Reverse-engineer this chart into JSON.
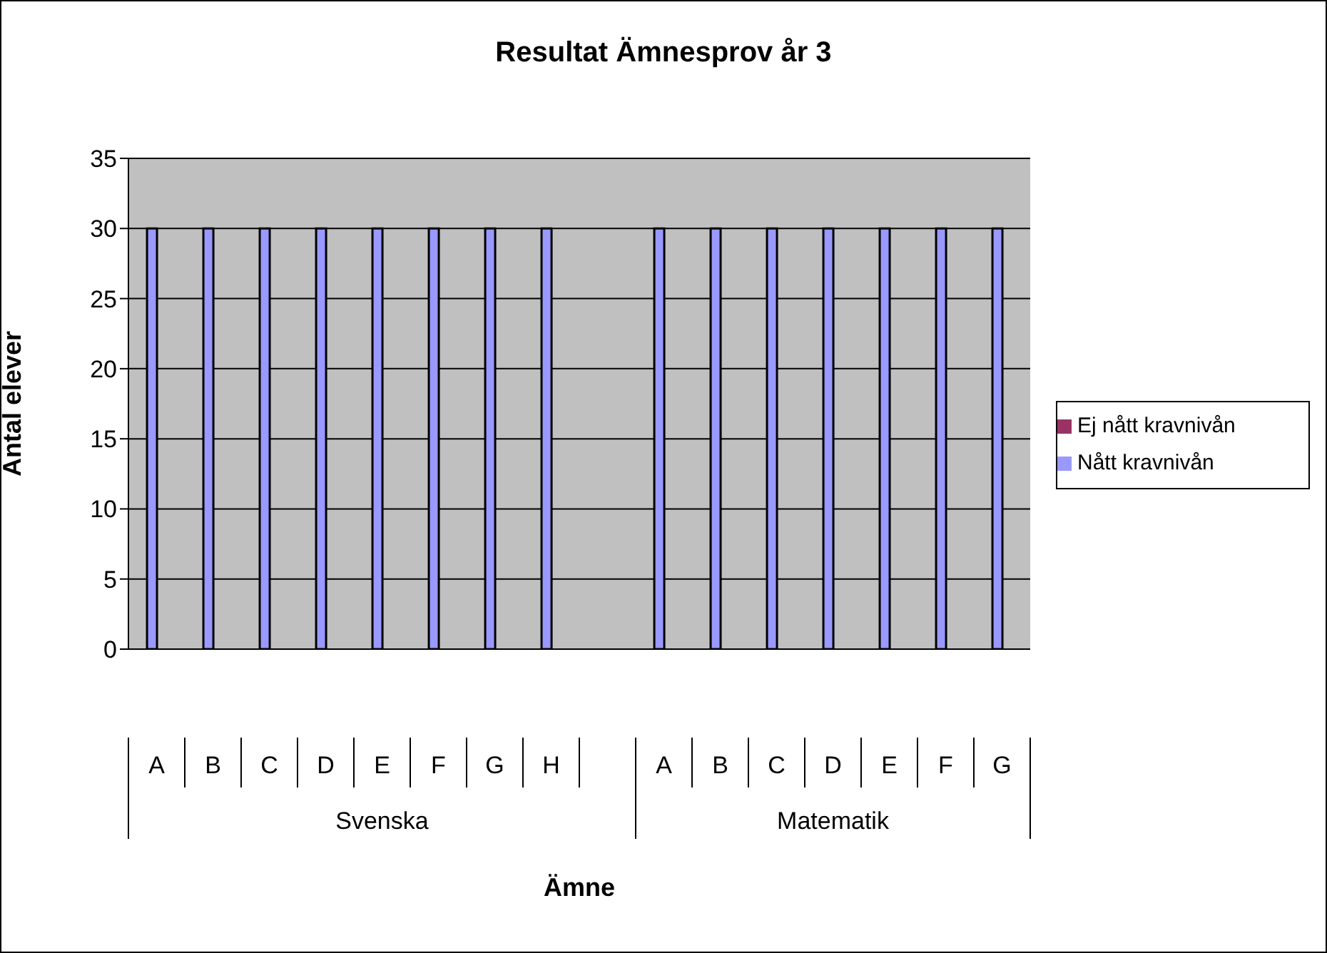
{
  "chart_data": {
    "type": "bar",
    "title": "Resultat Ämnesprov år 3",
    "xlabel": "Ämne",
    "ylabel": "Antal elever",
    "categories": [
      "A",
      "B",
      "C",
      "D",
      "E",
      "F",
      "G",
      "H",
      null,
      "A",
      "B",
      "C",
      "D",
      "E",
      "F",
      "G"
    ],
    "series": [
      {
        "name": "Nått kravnivån",
        "color": "#9999ff",
        "values": [
          30,
          30,
          30,
          30,
          30,
          30,
          30,
          30,
          null,
          30,
          30,
          30,
          30,
          30,
          30,
          30
        ]
      },
      {
        "name": "Ej nått kravnivån",
        "color": "#993366",
        "values": [
          0,
          0,
          0,
          0,
          0,
          0,
          0,
          0,
          null,
          0,
          0,
          0,
          0,
          0,
          0,
          0
        ]
      }
    ],
    "annotations": [
      "Svenska",
      "Matematik"
    ],
    "ylim": [
      0,
      35
    ],
    "yticks": [
      0,
      5,
      10,
      15,
      20,
      25,
      30,
      35
    ],
    "grid": "y",
    "legend": "right"
  }
}
